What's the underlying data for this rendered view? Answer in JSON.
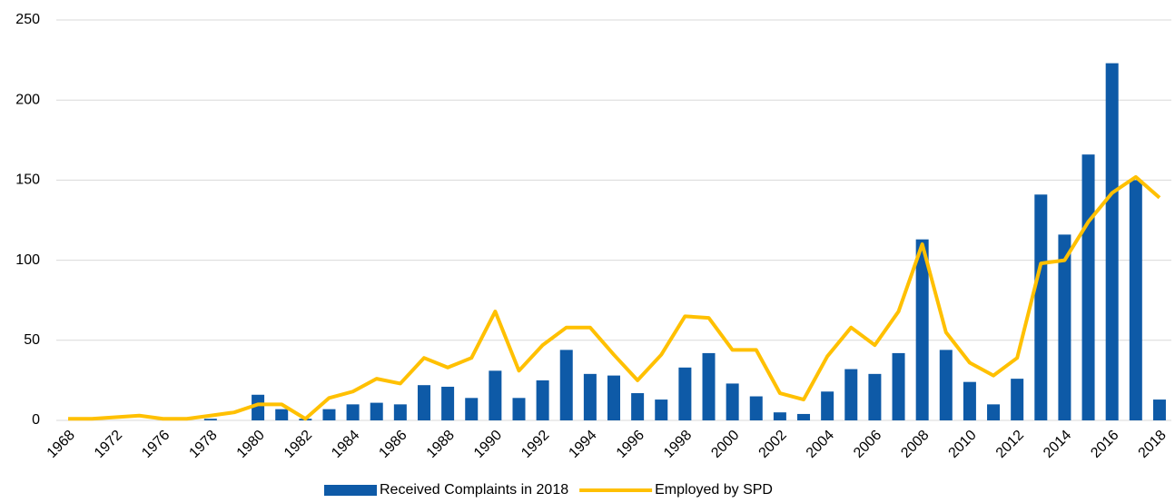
{
  "chart_data": {
    "type": "bar_line",
    "categories": [
      "1968",
      null,
      "1972",
      null,
      "1976",
      null,
      "1978",
      null,
      "1980",
      null,
      "1982",
      null,
      "1984",
      null,
      "1986",
      null,
      "1988",
      null,
      "1990",
      null,
      "1992",
      null,
      "1994",
      null,
      "1996",
      null,
      "1998",
      null,
      "2000",
      null,
      "2002",
      null,
      "2004",
      null,
      "2006",
      null,
      "2008",
      null,
      "2010",
      null,
      "2012",
      null,
      "2014",
      null,
      "2016",
      null,
      "2018"
    ],
    "series": [
      {
        "name": "Received Complaints in 2018",
        "type": "bar",
        "color": "#0e5aa7",
        "values": [
          0,
          0,
          0,
          0,
          0,
          0,
          1,
          0,
          16,
          7,
          1,
          7,
          10,
          11,
          10,
          22,
          21,
          14,
          31,
          14,
          25,
          44,
          29,
          28,
          17,
          13,
          33,
          42,
          23,
          15,
          5,
          4,
          18,
          32,
          29,
          42,
          113,
          44,
          24,
          10,
          26,
          141,
          116,
          166,
          223,
          150,
          13
        ]
      },
      {
        "name": "Employed by SPD",
        "type": "line",
        "color": "#ffc000",
        "values": [
          1,
          1,
          2,
          3,
          1,
          1,
          3,
          5,
          10,
          10,
          1,
          14,
          18,
          26,
          23,
          39,
          33,
          39,
          68,
          31,
          47,
          58,
          58,
          41,
          25,
          41,
          65,
          64,
          44,
          44,
          17,
          13,
          40,
          58,
          47,
          68,
          110,
          55,
          36,
          28,
          39,
          98,
          100,
          124,
          142,
          152,
          139
        ]
      }
    ],
    "ylim": [
      0,
      250
    ],
    "yticks": [
      0,
      50,
      100,
      150,
      200,
      250
    ],
    "grid": true,
    "legend": "bottom"
  }
}
